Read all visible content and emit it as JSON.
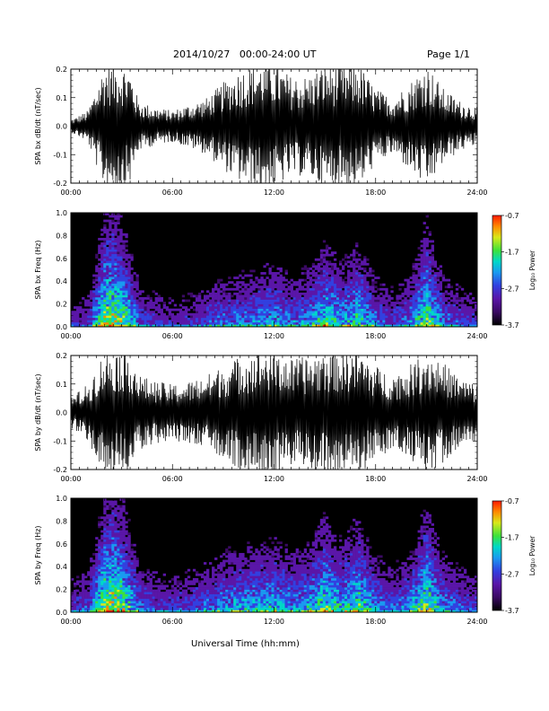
{
  "header": {
    "title": "2014/10/27   00:00-24:00 UT",
    "page": "Page 1/1"
  },
  "x_axis_title": "Universal Time (hh:mm)",
  "colorbar": {
    "label": "Log₁₀ Power",
    "ticks": [
      "-0.7",
      "-1.7",
      "-2.7",
      "-3.7"
    ],
    "range": [
      -3.7,
      -0.7
    ],
    "colormap": [
      "#000000",
      "#3a0a63",
      "#5a16a8",
      "#3240e0",
      "#1a9af0",
      "#00d8c8",
      "#3ce23c",
      "#d8e81a",
      "#ff8a00",
      "#ff1a00"
    ]
  },
  "chart_data": [
    {
      "type": "line",
      "panel": "waveform-bx",
      "ylabel": "SPA bx dB/dt (nT/sec)",
      "xlim": [
        0,
        24
      ],
      "ylim": [
        -0.2,
        0.2
      ],
      "xticks": [
        "00:00",
        "06:00",
        "12:00",
        "18:00",
        "24:00"
      ],
      "yticks": [
        "0.2",
        "0.1",
        "0.0",
        "-0.1",
        "-0.2"
      ],
      "x_hours": [
        0,
        1,
        2,
        2.5,
        3,
        3.5,
        4,
        5,
        6,
        7,
        8,
        9,
        10,
        11,
        12,
        13,
        14,
        15,
        16,
        17,
        18,
        19,
        20,
        21,
        22,
        23,
        24
      ],
      "envelope": [
        0.02,
        0.05,
        0.2,
        0.2,
        0.2,
        0.18,
        0.08,
        0.06,
        0.05,
        0.07,
        0.09,
        0.14,
        0.18,
        0.2,
        0.2,
        0.16,
        0.16,
        0.2,
        0.19,
        0.2,
        0.12,
        0.09,
        0.14,
        0.2,
        0.12,
        0.08,
        0.06
      ],
      "color": "#000000"
    },
    {
      "type": "heatmap",
      "panel": "spectrogram-bx",
      "ylabel": "SPA bx Freq (Hz)",
      "xlim": [
        0,
        24
      ],
      "ylim": [
        0,
        1.0
      ],
      "xticks": [
        "00:00",
        "06:00",
        "12:00",
        "18:00",
        "24:00"
      ],
      "yticks": [
        "1.0",
        "0.8",
        "0.6",
        "0.4",
        "0.2",
        "0.0"
      ],
      "value_range_log10": [
        -3.7,
        -0.7
      ],
      "x_hours": [
        0,
        1,
        2,
        2.5,
        3,
        3.5,
        4,
        5,
        6,
        7,
        8,
        9,
        10,
        11,
        12,
        13,
        14,
        15,
        16,
        17,
        18,
        19,
        20,
        21,
        22,
        23,
        24
      ],
      "activity": [
        0.28,
        0.35,
        0.9,
        0.92,
        0.85,
        0.7,
        0.45,
        0.35,
        0.3,
        0.35,
        0.4,
        0.48,
        0.5,
        0.55,
        0.6,
        0.5,
        0.55,
        0.75,
        0.6,
        0.72,
        0.5,
        0.4,
        0.5,
        0.85,
        0.5,
        0.4,
        0.35
      ]
    },
    {
      "type": "line",
      "panel": "waveform-by",
      "ylabel": "SPA by dB/dt (nT/sec)",
      "xlim": [
        0,
        24
      ],
      "ylim": [
        -0.2,
        0.2
      ],
      "xticks": [
        "00:00",
        "06:00",
        "12:00",
        "18:00",
        "24:00"
      ],
      "yticks": [
        "0.2",
        "0.1",
        "0.0",
        "-0.1",
        "-0.2"
      ],
      "x_hours": [
        0,
        1,
        2,
        2.5,
        3,
        3.5,
        4,
        5,
        6,
        7,
        8,
        9,
        10,
        11,
        12,
        13,
        14,
        15,
        16,
        17,
        18,
        19,
        20,
        21,
        22,
        23,
        24
      ],
      "envelope": [
        0.05,
        0.09,
        0.2,
        0.2,
        0.2,
        0.2,
        0.12,
        0.1,
        0.09,
        0.1,
        0.12,
        0.15,
        0.18,
        0.2,
        0.2,
        0.17,
        0.18,
        0.2,
        0.2,
        0.2,
        0.15,
        0.12,
        0.15,
        0.2,
        0.16,
        0.11,
        0.09
      ],
      "color": "#000000"
    },
    {
      "type": "heatmap",
      "panel": "spectrogram-by",
      "ylabel": "SPA by Freq (Hz)",
      "xlim": [
        0,
        24
      ],
      "ylim": [
        0,
        1.0
      ],
      "xticks": [
        "00:00",
        "06:00",
        "12:00",
        "18:00",
        "24:00"
      ],
      "yticks": [
        "1.0",
        "0.8",
        "0.6",
        "0.4",
        "0.2",
        "0.0"
      ],
      "value_range_log10": [
        -3.7,
        -0.7
      ],
      "x_hours": [
        0,
        1,
        2,
        2.5,
        3,
        3.5,
        4,
        5,
        6,
        7,
        8,
        9,
        10,
        11,
        12,
        13,
        14,
        15,
        16,
        17,
        18,
        19,
        20,
        21,
        22,
        23,
        24
      ],
      "activity": [
        0.35,
        0.42,
        0.92,
        0.95,
        0.88,
        0.72,
        0.5,
        0.4,
        0.38,
        0.42,
        0.48,
        0.55,
        0.6,
        0.62,
        0.65,
        0.58,
        0.62,
        0.8,
        0.65,
        0.8,
        0.55,
        0.45,
        0.55,
        0.88,
        0.55,
        0.45,
        0.4
      ]
    }
  ]
}
